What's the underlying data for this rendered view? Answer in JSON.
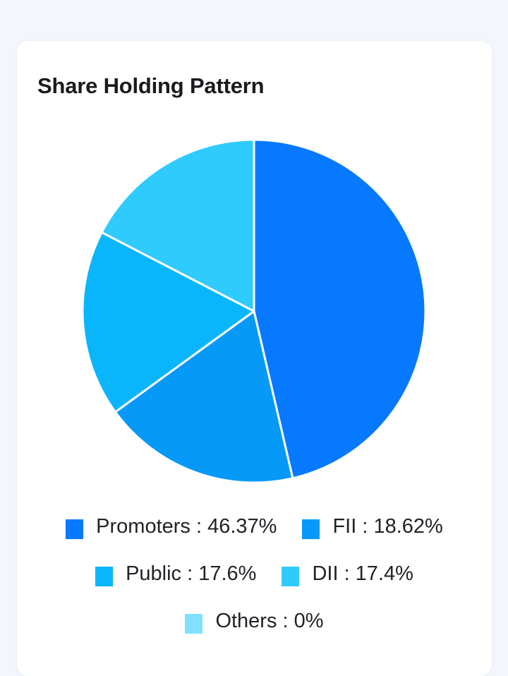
{
  "card": {
    "title": "Share Holding Pattern"
  },
  "chart_data": {
    "type": "pie",
    "title": "Share Holding Pattern",
    "slices": [
      {
        "label": "Promoters",
        "value": 46.37,
        "color": "#0779ff"
      },
      {
        "label": "FII",
        "value": 18.62,
        "color": "#0699f8"
      },
      {
        "label": "Public",
        "value": 17.6,
        "color": "#0ab6fb"
      },
      {
        "label": "DII",
        "value": 17.4,
        "color": "#30cbfd"
      },
      {
        "label": "Others",
        "value": 0,
        "color": "#80e0fd"
      }
    ],
    "legend": {
      "placement": "bottom",
      "entries": [
        "Promoters : 46.37%",
        "FII : 18.62%",
        "Public : 17.6%",
        "DII : 17.4%",
        "Others : 0%"
      ]
    }
  }
}
